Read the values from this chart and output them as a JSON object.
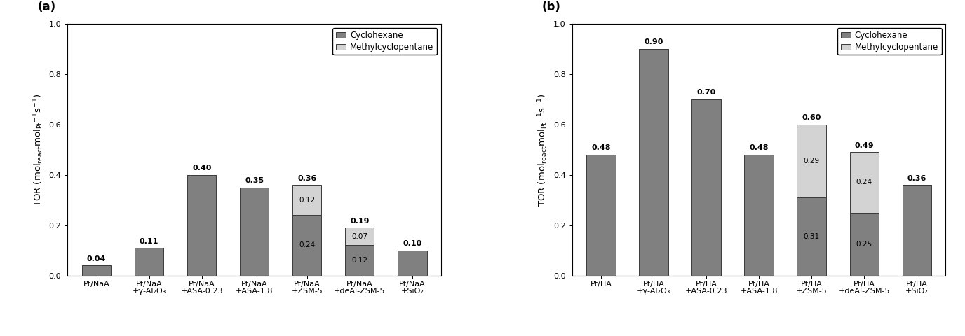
{
  "panel_a": {
    "label": "(a)",
    "categories": [
      "Pt/NaA",
      "Pt/NaA\n+γ-Al₂O₃",
      "Pt/NaA\n+ASA-0.23",
      "Pt/NaA\n+ASA-1.8",
      "Pt/NaA\n+ZSM-5",
      "Pt/NaA\n+deAl-ZSM-5",
      "Pt/NaA\n+SiO₂"
    ],
    "cyclohexane": [
      0.04,
      0.11,
      0.4,
      0.35,
      0.24,
      0.12,
      0.1
    ],
    "methylcyclopentane": [
      0.0,
      0.0,
      0.0,
      0.0,
      0.12,
      0.07,
      0.0
    ],
    "total_labels": [
      "0.04",
      "0.11",
      "0.40",
      "0.35",
      "0.36",
      "0.19",
      "0.10"
    ],
    "ch_inner_labels": [
      null,
      null,
      null,
      null,
      "0.24",
      "0.12",
      null
    ],
    "mcp_inner_labels": [
      null,
      null,
      null,
      null,
      "0.12",
      "0.07",
      null
    ],
    "ylim": [
      0,
      1.0
    ],
    "yticks": [
      0.0,
      0.2,
      0.4,
      0.6,
      0.8,
      1.0
    ]
  },
  "panel_b": {
    "label": "(b)",
    "categories": [
      "Pt/HA",
      "Pt/HA\n+γ-Al₂O₃",
      "Pt/HA\n+ASA-0.23",
      "Pt/HA\n+ASA-1.8",
      "Pt/HA\n+ZSM-5",
      "Pt/HA\n+deAl-ZSM-5",
      "Pt/HA\n+SiO₂"
    ],
    "cyclohexane": [
      0.48,
      0.9,
      0.7,
      0.48,
      0.31,
      0.25,
      0.36
    ],
    "methylcyclopentane": [
      0.0,
      0.0,
      0.0,
      0.0,
      0.29,
      0.24,
      0.0
    ],
    "total_labels": [
      "0.48",
      "0.90",
      "0.70",
      "0.48",
      "0.60",
      "0.49",
      "0.36"
    ],
    "ch_inner_labels": [
      null,
      null,
      null,
      null,
      "0.31",
      "0.25",
      null
    ],
    "mcp_inner_labels": [
      null,
      null,
      null,
      null,
      "0.29",
      "0.24",
      null
    ],
    "ylim": [
      0,
      1.0
    ],
    "yticks": [
      0.0,
      0.2,
      0.4,
      0.6,
      0.8,
      1.0
    ]
  },
  "cyclohexane_color": "#808080",
  "methylcyclopentane_color": "#d3d3d3",
  "bar_edge_color": "#3a3a3a",
  "bar_width": 0.55,
  "ylabel": "TOR (mol$_\\mathrm{react}$mol$_\\mathrm{Pt}$$^{-1}$s$^{-1}$)",
  "legend_cyclohexane": "Cyclohexane",
  "legend_mcp": "Methylcyclopentane",
  "total_label_fontsize": 8.0,
  "inner_label_fontsize": 7.5,
  "tick_fontsize": 8.0,
  "ylabel_fontsize": 9.5,
  "legend_fontsize": 8.5,
  "panel_label_fontsize": 12
}
